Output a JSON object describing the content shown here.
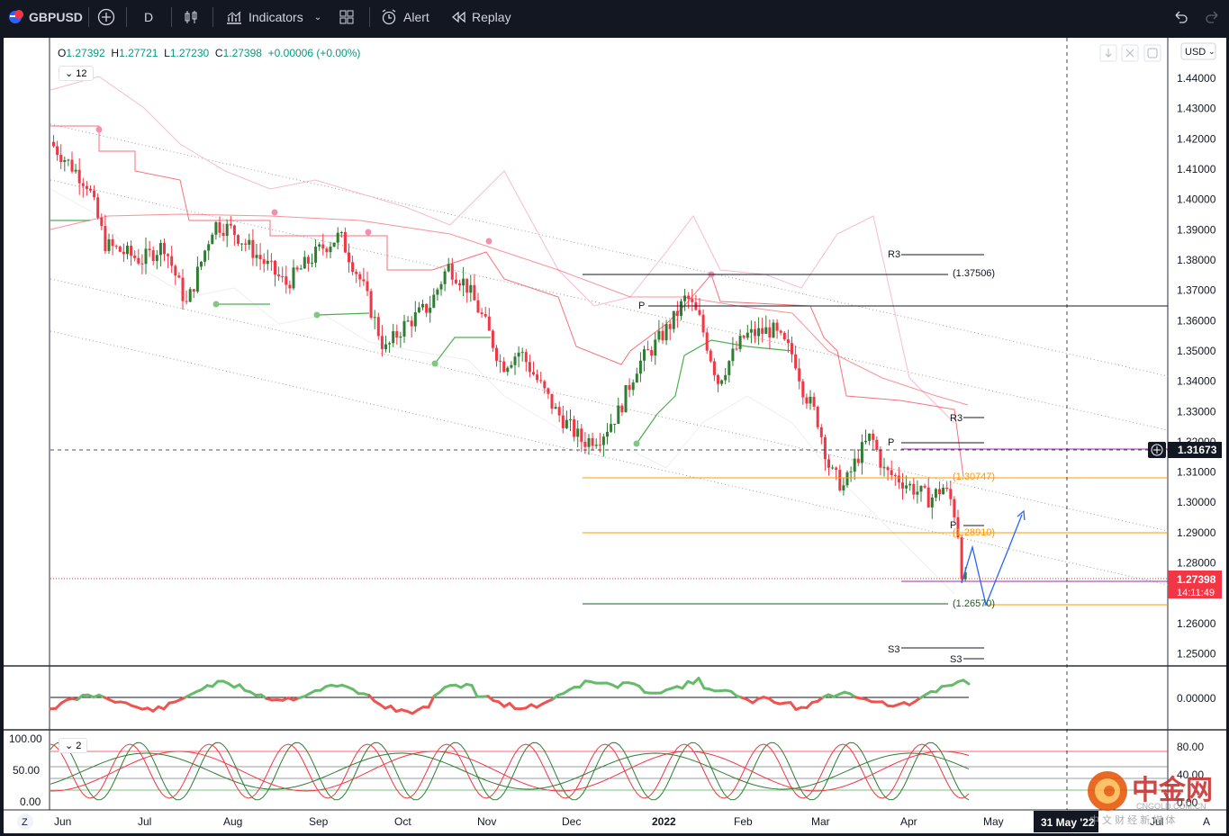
{
  "toolbar": {
    "symbol": "GBPUSD",
    "interval": "D",
    "indicators_label": "Indicators",
    "alert_label": "Alert",
    "replay_label": "Replay"
  },
  "legend": {
    "o_label": "O",
    "o_value": "1.27392",
    "h_label": "H",
    "h_value": "1.27721",
    "l_label": "L",
    "l_value": "1.27230",
    "c_label": "C",
    "c_value": "1.27398",
    "change": "+0.00006 (+0.00%)",
    "collapse_count": "12",
    "stoch_count": "2"
  },
  "price_scale": {
    "currency": "USD",
    "ticks": [
      "1.44000",
      "1.43000",
      "1.42000",
      "1.41000",
      "1.40000",
      "1.39000",
      "1.38000",
      "1.37000",
      "1.36000",
      "1.35000",
      "1.34000",
      "1.33000",
      "1.32000",
      "1.31000",
      "1.30000",
      "1.29000",
      "1.28000",
      "1.27000",
      "1.26000",
      "1.25000"
    ],
    "crosshair_price": "1.31673",
    "last_price": "1.27398",
    "countdown": "14:11:49",
    "osc_tick": "0.00000",
    "stoch_ticks_right": [
      "80.00",
      "40.00",
      "0.00"
    ],
    "stoch_ticks_left": [
      "100.00",
      "50.00",
      "0.00"
    ]
  },
  "time_scale": {
    "labels": [
      "Jun",
      "Jul",
      "Aug",
      "Sep",
      "Oct",
      "Nov",
      "Dec",
      "2022",
      "Feb",
      "Mar",
      "Apr",
      "May"
    ],
    "crosshair_date": "31 May '22",
    "trailing": [
      "Jul",
      "A"
    ]
  },
  "annotations": {
    "r3_top": "R3",
    "level_137506": "(1.37506)",
    "p_top": "P",
    "r3_mid": "R3",
    "p_mid": "P",
    "level_130747": "(1.30747)",
    "p_low": "P",
    "level_128910": "(1.28910)",
    "level_126570": "(1.26570)",
    "s3_a": "S3",
    "s3_b": "S3"
  },
  "watermark": {
    "brand": "中金网",
    "domain": "CNGOLD.COM.CN",
    "slogan": "中 文 财 经 新 媒 体"
  },
  "colors": {
    "up": "#089981",
    "up_candle": "#2e7d32",
    "down": "#f23645",
    "toolbar_bg": "#131722",
    "accent_blue": "#2962ff",
    "orange": "#ff9800",
    "purple": "#9c27b0"
  }
}
